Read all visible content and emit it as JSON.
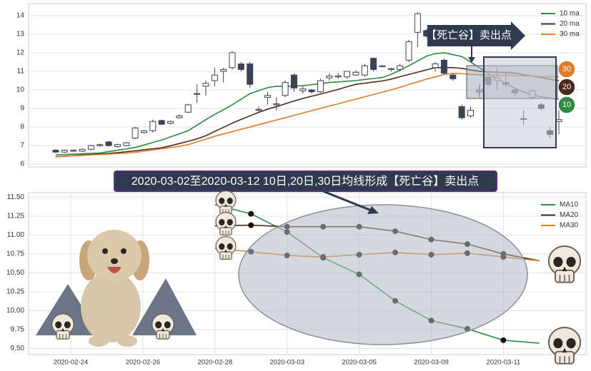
{
  "chart_data": [
    {
      "type": "candlestick",
      "ylim": [
        5.85,
        14.65
      ],
      "yticks": [
        6,
        7,
        8,
        9,
        10,
        11,
        12,
        13,
        14
      ],
      "grid": true,
      "up_color": "#ffffff",
      "down_color": "#3b4256",
      "open": [
        6.75,
        6.65,
        6.7,
        6.7,
        6.8,
        7.0,
        7.2,
        6.95,
        7.0,
        7.4,
        7.7,
        7.8,
        8.35,
        8.2,
        8.5,
        8.8,
        9.8,
        10.2,
        10.5,
        11.0,
        11.2,
        11.4,
        11.4,
        8.9,
        9.6,
        9.2,
        9.7,
        10.8,
        9.95,
        10.0,
        9.9,
        10.65,
        10.7,
        10.7,
        10.8,
        10.8,
        11.7,
        11.25,
        11.1,
        11.1,
        11.6,
        13.1,
        13.2,
        11.2,
        11.6,
        10.8,
        9.1,
        8.6,
        9.9,
        10.7,
        10.5,
        10.4,
        10.0,
        8.45,
        9.6,
        9.2,
        7.8,
        8.3
      ],
      "close": [
        6.65,
        6.75,
        6.75,
        6.8,
        7.0,
        7.05,
        7.0,
        7.05,
        7.15,
        7.95,
        7.8,
        8.3,
        8.15,
        8.3,
        8.6,
        9.2,
        9.8,
        10.35,
        10.8,
        11.1,
        12.0,
        11.1,
        10.3,
        8.95,
        9.7,
        9.25,
        10.4,
        10.1,
        10.05,
        9.9,
        10.5,
        10.75,
        10.75,
        11.0,
        10.95,
        11.3,
        11.1,
        11.3,
        11.15,
        11.3,
        12.6,
        14.1,
        12.9,
        11.4,
        10.9,
        10.6,
        8.5,
        8.9,
        10.0,
        10.3,
        10.65,
        10.3,
        9.85,
        8.45,
        9.95,
        9.0,
        7.6,
        8.4
      ],
      "high": [
        6.8,
        6.8,
        6.8,
        6.85,
        7.05,
        7.1,
        7.25,
        7.1,
        7.2,
        8.0,
        7.85,
        8.4,
        8.4,
        8.35,
        8.7,
        9.25,
        10.3,
        10.5,
        11.2,
        11.2,
        12.1,
        11.5,
        11.5,
        9.1,
        9.9,
        9.6,
        10.5,
        10.9,
        10.2,
        10.05,
        10.6,
        10.9,
        10.9,
        11.0,
        11.05,
        11.4,
        11.75,
        11.35,
        11.2,
        11.4,
        12.7,
        14.2,
        13.3,
        11.5,
        11.7,
        10.9,
        9.2,
        9.1,
        10.3,
        10.8,
        11.2,
        11.0,
        10.1,
        8.9,
        10.0,
        9.3,
        8.0,
        8.9
      ],
      "low": [
        6.6,
        6.6,
        6.65,
        6.65,
        6.75,
        6.95,
        6.95,
        6.9,
        6.95,
        7.35,
        7.65,
        7.7,
        8.1,
        8.15,
        8.45,
        8.75,
        9.3,
        9.7,
        10.2,
        10.4,
        11.1,
        11.0,
        10.1,
        8.8,
        9.2,
        8.9,
        9.6,
        9.9,
        9.8,
        9.8,
        9.85,
        10.5,
        10.6,
        10.6,
        10.75,
        10.7,
        11.0,
        11.2,
        11.0,
        11.0,
        11.5,
        12.3,
        12.8,
        11.0,
        10.8,
        10.5,
        8.4,
        8.5,
        9.6,
        10.2,
        10.0,
        10.1,
        9.7,
        8.1,
        9.5,
        8.9,
        7.4,
        7.6
      ],
      "series": [
        {
          "name": "10 ma",
          "color": "#2e8b3e",
          "values": [
            6.5,
            6.52,
            6.54,
            6.56,
            6.58,
            6.6,
            6.68,
            6.75,
            6.82,
            6.9,
            7.03,
            7.17,
            7.3,
            7.47,
            7.63,
            7.8,
            8.1,
            8.4,
            8.67,
            8.93,
            9.2,
            9.5,
            9.8,
            9.96,
            10.12,
            10.2,
            10.2,
            10.2,
            10.23,
            10.28,
            10.34,
            10.4,
            10.43,
            10.47,
            10.5,
            10.56,
            10.61,
            10.67,
            10.84,
            11.06,
            11.3,
            11.56,
            11.82,
            11.95,
            12.0,
            11.9,
            11.8,
            11.5,
            11.2,
            10.9,
            10.6,
            10.35,
            10.1,
            9.88,
            9.75,
            9.62,
            9.55,
            9.5
          ]
        },
        {
          "name": "20 ma",
          "color": "#4a2a1a",
          "values": [
            6.4,
            6.43,
            6.46,
            6.49,
            6.52,
            6.55,
            6.58,
            6.62,
            6.67,
            6.72,
            6.78,
            6.83,
            6.88,
            6.99,
            7.11,
            7.23,
            7.36,
            7.53,
            7.76,
            7.98,
            8.21,
            8.41,
            8.6,
            8.79,
            8.96,
            9.1,
            9.25,
            9.4,
            9.54,
            9.66,
            9.78,
            9.9,
            10.03,
            10.17,
            10.3,
            10.36,
            10.42,
            10.48,
            10.58,
            10.71,
            10.83,
            10.95,
            11.08,
            11.2,
            11.2,
            11.2,
            11.16,
            11.08,
            11.0,
            10.98,
            10.95,
            10.93,
            10.9,
            10.82,
            10.74,
            10.66,
            10.58,
            10.5
          ]
        },
        {
          "name": "30 ma",
          "color": "#e07b28",
          "values": [
            6.4,
            6.42,
            6.45,
            6.47,
            6.5,
            6.52,
            6.54,
            6.57,
            6.59,
            6.64,
            6.7,
            6.77,
            6.83,
            6.89,
            6.96,
            7.05,
            7.2,
            7.35,
            7.5,
            7.63,
            7.75,
            7.88,
            8.0,
            8.13,
            8.25,
            8.38,
            8.5,
            8.63,
            8.75,
            8.88,
            9.0,
            9.13,
            9.25,
            9.38,
            9.5,
            9.63,
            9.75,
            9.88,
            10.0,
            10.14,
            10.29,
            10.43,
            10.58,
            10.7,
            10.83,
            10.89,
            10.87,
            10.84,
            10.82,
            10.8,
            10.79,
            10.78,
            10.76,
            10.75,
            10.74,
            10.72,
            10.71,
            10.7
          ]
        }
      ],
      "legend": "upper right",
      "annotation": "【死亡谷】卖出点",
      "badges": [
        "30",
        "20",
        "10"
      ]
    },
    {
      "type": "line",
      "categories": [
        "2020-02-24",
        null,
        "2020-02-26",
        null,
        "2020-02-28",
        null,
        "2020-03-03",
        null,
        "2020-03-05",
        null,
        "2020-03-09",
        null,
        "2020-03-11",
        null
      ],
      "ylim": [
        9.42,
        11.56
      ],
      "yticks": [
        {
          "value": 9.5,
          "label": "9.50"
        },
        {
          "value": 9.75,
          "label": "9.75"
        },
        {
          "value": 10,
          "label": "10.00"
        },
        {
          "value": 10.25,
          "label": "10.25"
        },
        {
          "value": 10.5,
          "label": "10.50"
        },
        {
          "value": 10.75,
          "label": "10.75"
        },
        {
          "value": 11,
          "label": "11.00"
        },
        {
          "value": 11.25,
          "label": "11.25"
        },
        {
          "value": 11.5,
          "label": "11.50"
        }
      ],
      "grid": true,
      "series": [
        {
          "name": "MA10",
          "color": "#2e8b3e",
          "values": [
            null,
            null,
            null,
            null,
            11.4,
            11.28,
            11.04,
            10.7,
            10.48,
            10.13,
            9.87,
            9.76,
            9.61,
            9.57
          ]
        },
        {
          "name": "MA20",
          "color": "#4a2a1a",
          "values": [
            null,
            null,
            null,
            null,
            11.12,
            11.13,
            11.11,
            11.11,
            11.11,
            11.05,
            10.94,
            10.88,
            10.75,
            10.66
          ]
        },
        {
          "name": "MA30",
          "color": "#e07b28",
          "values": [
            null,
            null,
            null,
            null,
            10.82,
            10.78,
            10.73,
            10.71,
            10.74,
            10.77,
            10.74,
            10.76,
            10.71,
            10.66
          ]
        }
      ],
      "legend": "upper right",
      "annotation": "2020-03-02至2020-03-12 10日,20日,30日均线形成【死亡谷】卖出点"
    }
  ]
}
